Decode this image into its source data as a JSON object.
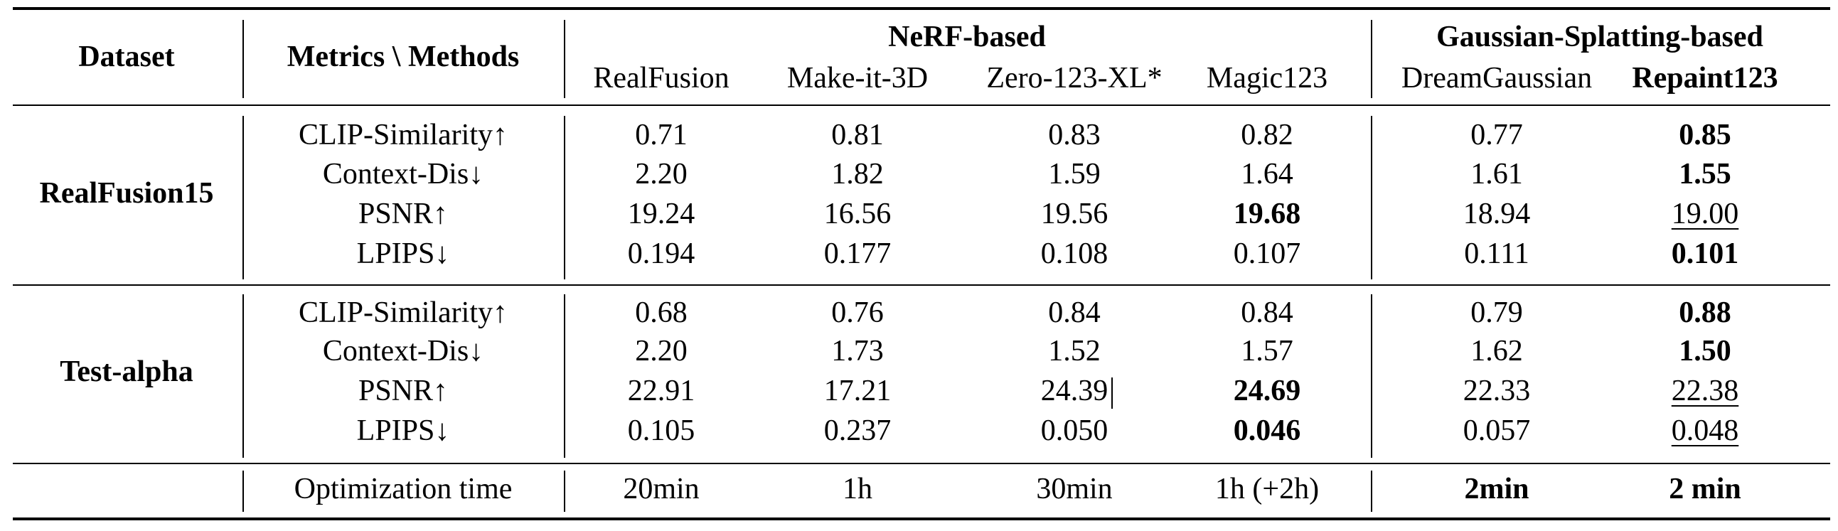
{
  "header": {
    "dataset": "Dataset",
    "metrics_methods": "Metrics \\ Methods",
    "group_nerf": "NeRF-based",
    "group_gs": "Gaussian-Splatting-based",
    "methods": [
      "RealFusion",
      "Make-it-3D",
      "Zero-123-XL*",
      "Magic123",
      "DreamGaussian",
      "Repaint123"
    ]
  },
  "sections": [
    {
      "dataset": "RealFusion15",
      "rows": [
        {
          "metric": "CLIP-Similarity↑",
          "values": [
            "0.71",
            "0.81",
            "0.83",
            "0.82",
            "0.77",
            "0.85"
          ],
          "bold": [
            5
          ],
          "underline": []
        },
        {
          "metric": "Context-Dis↓",
          "values": [
            "2.20",
            "1.82",
            "1.59",
            "1.64",
            "1.61",
            "1.55"
          ],
          "bold": [
            5
          ],
          "underline": []
        },
        {
          "metric": "PSNR↑",
          "values": [
            "19.24",
            "16.56",
            "19.56",
            "19.68",
            "18.94",
            "19.00"
          ],
          "bold": [
            3
          ],
          "underline": [
            5
          ]
        },
        {
          "metric": "LPIPS↓",
          "values": [
            "0.194",
            "0.177",
            "0.108",
            "0.107",
            "0.111",
            "0.101"
          ],
          "bold": [
            5
          ],
          "underline": []
        }
      ]
    },
    {
      "dataset": "Test-alpha",
      "rows": [
        {
          "metric": "CLIP-Similarity↑",
          "values": [
            "0.68",
            "0.76",
            "0.84",
            "0.84",
            "0.79",
            "0.88"
          ],
          "bold": [
            5
          ],
          "underline": []
        },
        {
          "metric": "Context-Dis↓",
          "values": [
            "2.20",
            "1.73",
            "1.52",
            "1.57",
            "1.62",
            "1.50"
          ],
          "bold": [
            5
          ],
          "underline": []
        },
        {
          "metric": "PSNR↑",
          "values": [
            "22.91",
            "17.21",
            "24.39",
            "24.69",
            "22.33",
            "22.38"
          ],
          "bold": [
            3
          ],
          "underline": [
            5
          ]
        },
        {
          "metric": "LPIPS↓",
          "values": [
            "0.105",
            "0.237",
            "0.050",
            "0.046",
            "0.057",
            "0.048"
          ],
          "bold": [
            3
          ],
          "underline": [
            5
          ]
        }
      ]
    }
  ],
  "optimization": {
    "metric": "Optimization time",
    "values": [
      "20min",
      "1h",
      "30min",
      "1h (+2h)",
      "2min",
      "2 min"
    ],
    "bold": [
      4,
      5
    ]
  }
}
